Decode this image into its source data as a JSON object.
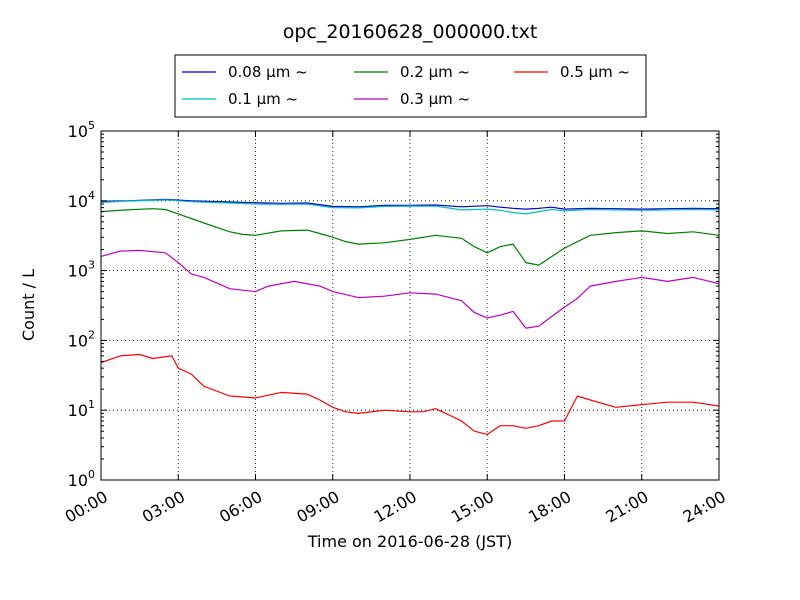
{
  "chart_data": {
    "type": "line",
    "title": "opc_20160628_000000.txt",
    "xlabel": "Time on 2016-06-28 (JST)",
    "ylabel": "Count / L",
    "y_scale": "log",
    "ylim": [
      1,
      100000
    ],
    "y_ticks": [
      {
        "base": "10",
        "exp": "0"
      },
      {
        "base": "10",
        "exp": "1"
      },
      {
        "base": "10",
        "exp": "2"
      },
      {
        "base": "10",
        "exp": "3"
      },
      {
        "base": "10",
        "exp": "4"
      },
      {
        "base": "10",
        "exp": "5"
      }
    ],
    "xlim": [
      "00:00",
      "24:00"
    ],
    "x_ticks": [
      "00:00",
      "03:00",
      "06:00",
      "09:00",
      "12:00",
      "15:00",
      "18:00",
      "21:00",
      "24:00"
    ],
    "grid": true,
    "legend_placement": "top-center",
    "series": [
      {
        "name": "0.08 μm ~",
        "color": "#0000cc",
        "points": [
          [
            "00:00",
            9800
          ],
          [
            "01:00",
            10000
          ],
          [
            "02:30",
            10500
          ],
          [
            "03:30",
            10000
          ],
          [
            "05:00",
            9600
          ],
          [
            "06:00",
            9400
          ],
          [
            "07:00",
            9200
          ],
          [
            "08:00",
            9300
          ],
          [
            "09:00",
            8300
          ],
          [
            "10:00",
            8200
          ],
          [
            "11:00",
            8600
          ],
          [
            "12:00",
            8600
          ],
          [
            "13:00",
            8700
          ],
          [
            "14:00",
            8200
          ],
          [
            "15:00",
            8500
          ],
          [
            "15:30",
            8100
          ],
          [
            "16:00",
            7800
          ],
          [
            "16:30",
            7600
          ],
          [
            "17:00",
            7800
          ],
          [
            "17:30",
            8100
          ],
          [
            "18:00",
            7600
          ],
          [
            "19:00",
            7800
          ],
          [
            "20:00",
            7700
          ],
          [
            "21:00",
            7600
          ],
          [
            "22:00",
            7700
          ],
          [
            "23:00",
            7800
          ],
          [
            "24:00",
            7700
          ]
        ]
      },
      {
        "name": "0.1 μm ~",
        "color": "#00bfbf",
        "points": [
          [
            "00:00",
            9500
          ],
          [
            "01:00",
            9900
          ],
          [
            "02:30",
            10300
          ],
          [
            "03:30",
            9700
          ],
          [
            "05:00",
            9300
          ],
          [
            "06:00",
            9000
          ],
          [
            "07:00",
            8900
          ],
          [
            "08:00",
            9000
          ],
          [
            "09:00",
            8000
          ],
          [
            "10:00",
            7900
          ],
          [
            "11:00",
            8300
          ],
          [
            "12:00",
            8400
          ],
          [
            "13:00",
            8400
          ],
          [
            "14:00",
            7400
          ],
          [
            "15:00",
            7600
          ],
          [
            "15:30",
            7300
          ],
          [
            "16:00",
            6800
          ],
          [
            "16:30",
            6500
          ],
          [
            "17:00",
            7000
          ],
          [
            "17:30",
            7500
          ],
          [
            "18:00",
            7200
          ],
          [
            "19:00",
            7500
          ],
          [
            "20:00",
            7400
          ],
          [
            "21:00",
            7300
          ],
          [
            "22:00",
            7400
          ],
          [
            "23:00",
            7500
          ],
          [
            "24:00",
            7400
          ]
        ]
      },
      {
        "name": "0.2 μm ~",
        "color": "#008000",
        "points": [
          [
            "00:00",
            7000
          ],
          [
            "01:00",
            7400
          ],
          [
            "02:00",
            7700
          ],
          [
            "02:30",
            7500
          ],
          [
            "03:00",
            6500
          ],
          [
            "04:00",
            4800
          ],
          [
            "05:00",
            3600
          ],
          [
            "05:30",
            3300
          ],
          [
            "06:00",
            3200
          ],
          [
            "07:00",
            3700
          ],
          [
            "08:00",
            3800
          ],
          [
            "08:30",
            3400
          ],
          [
            "09:00",
            3000
          ],
          [
            "09:30",
            2600
          ],
          [
            "10:00",
            2400
          ],
          [
            "11:00",
            2500
          ],
          [
            "12:00",
            2800
          ],
          [
            "13:00",
            3200
          ],
          [
            "14:00",
            2900
          ],
          [
            "14:30",
            2200
          ],
          [
            "15:00",
            1800
          ],
          [
            "15:30",
            2200
          ],
          [
            "16:00",
            2400
          ],
          [
            "16:30",
            1300
          ],
          [
            "17:00",
            1200
          ],
          [
            "18:00",
            2100
          ],
          [
            "19:00",
            3200
          ],
          [
            "20:00",
            3500
          ],
          [
            "21:00",
            3700
          ],
          [
            "22:00",
            3400
          ],
          [
            "23:00",
            3600
          ],
          [
            "24:00",
            3200
          ]
        ]
      },
      {
        "name": "0.3 μm ~",
        "color": "#bf00bf",
        "points": [
          [
            "00:00",
            1600
          ],
          [
            "00:45",
            1900
          ],
          [
            "01:30",
            1950
          ],
          [
            "02:30",
            1800
          ],
          [
            "03:00",
            1300
          ],
          [
            "03:30",
            900
          ],
          [
            "04:00",
            800
          ],
          [
            "05:00",
            550
          ],
          [
            "06:00",
            500
          ],
          [
            "06:30",
            600
          ],
          [
            "07:30",
            700
          ],
          [
            "08:30",
            600
          ],
          [
            "09:00",
            500
          ],
          [
            "10:00",
            410
          ],
          [
            "11:00",
            430
          ],
          [
            "12:00",
            480
          ],
          [
            "13:00",
            460
          ],
          [
            "14:00",
            370
          ],
          [
            "14:30",
            250
          ],
          [
            "15:00",
            210
          ],
          [
            "15:30",
            230
          ],
          [
            "16:00",
            260
          ],
          [
            "16:30",
            150
          ],
          [
            "17:00",
            160
          ],
          [
            "17:30",
            220
          ],
          [
            "18:00",
            300
          ],
          [
            "18:30",
            400
          ],
          [
            "19:00",
            600
          ],
          [
            "20:00",
            700
          ],
          [
            "21:00",
            800
          ],
          [
            "22:00",
            700
          ],
          [
            "23:00",
            800
          ],
          [
            "24:00",
            650
          ]
        ]
      },
      {
        "name": "0.5 μm ~",
        "color": "#ff0000",
        "points": [
          [
            "00:00",
            48
          ],
          [
            "00:45",
            60
          ],
          [
            "01:30",
            63
          ],
          [
            "02:00",
            55
          ],
          [
            "02:45",
            60
          ],
          [
            "03:00",
            40
          ],
          [
            "03:30",
            33
          ],
          [
            "04:00",
            22
          ],
          [
            "05:00",
            16
          ],
          [
            "06:00",
            15
          ],
          [
            "07:00",
            18
          ],
          [
            "08:00",
            17
          ],
          [
            "08:30",
            14
          ],
          [
            "09:00",
            11
          ],
          [
            "09:30",
            9.5
          ],
          [
            "10:00",
            9
          ],
          [
            "11:00",
            10
          ],
          [
            "12:00",
            9.5
          ],
          [
            "12:30",
            9.5
          ],
          [
            "13:00",
            10.5
          ],
          [
            "14:00",
            7
          ],
          [
            "14:30",
            5
          ],
          [
            "15:00",
            4.5
          ],
          [
            "15:30",
            6
          ],
          [
            "16:00",
            6
          ],
          [
            "16:30",
            5.5
          ],
          [
            "17:00",
            6
          ],
          [
            "17:30",
            7
          ],
          [
            "18:00",
            7
          ],
          [
            "18:30",
            16
          ],
          [
            "19:00",
            14
          ],
          [
            "20:00",
            11
          ],
          [
            "21:00",
            12
          ],
          [
            "22:00",
            13
          ],
          [
            "23:00",
            13
          ],
          [
            "24:00",
            11.5
          ]
        ]
      }
    ]
  }
}
